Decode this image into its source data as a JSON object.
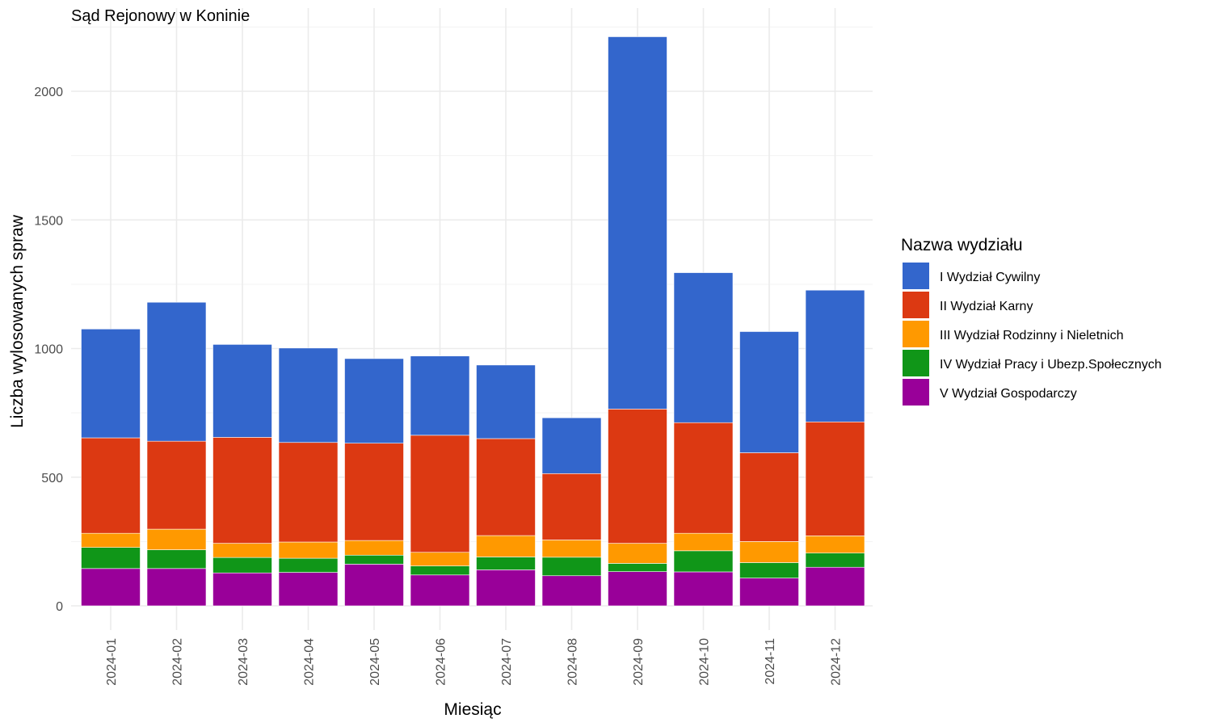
{
  "chart_data": {
    "type": "bar",
    "stacked": true,
    "title": "Sąd Rejonowy w Koninie",
    "xlabel": "Miesiąc",
    "ylabel": "Liczba wylosowanych spraw",
    "ylim": [
      0,
      2250
    ],
    "y_ticks": [
      0,
      500,
      1000,
      1500,
      2000
    ],
    "grid": true,
    "legend_title": "Nazwa wydziału",
    "legend_position": "right",
    "categories": [
      "2024-01",
      "2024-02",
      "2024-03",
      "2024-04",
      "2024-05",
      "2024-06",
      "2024-07",
      "2024-08",
      "2024-09",
      "2024-10",
      "2024-11",
      "2024-12"
    ],
    "series": [
      {
        "name": "V Wydział Gospodarczy",
        "color": "#990099",
        "values": [
          145,
          145,
          128,
          130,
          162,
          120,
          140,
          117,
          133,
          132,
          108,
          150
        ]
      },
      {
        "name": "IV Wydział Pracy i Ubezp.Społecznych",
        "color": "#109618",
        "values": [
          82,
          73,
          60,
          55,
          35,
          35,
          50,
          72,
          32,
          82,
          60,
          55
        ]
      },
      {
        "name": "III Wydział Rodzinny i Nieletnich",
        "color": "#ff9900",
        "values": [
          55,
          80,
          55,
          63,
          57,
          53,
          83,
          67,
          78,
          68,
          82,
          67
        ]
      },
      {
        "name": "II Wydział Karny",
        "color": "#dc3912",
        "values": [
          371,
          342,
          412,
          387,
          378,
          455,
          377,
          258,
          522,
          430,
          345,
          443
        ]
      },
      {
        "name": "I Wydział Cywilny",
        "color": "#3366cc",
        "values": [
          423,
          540,
          361,
          367,
          329,
          308,
          286,
          217,
          1447,
          583,
          471,
          512
        ]
      }
    ]
  }
}
